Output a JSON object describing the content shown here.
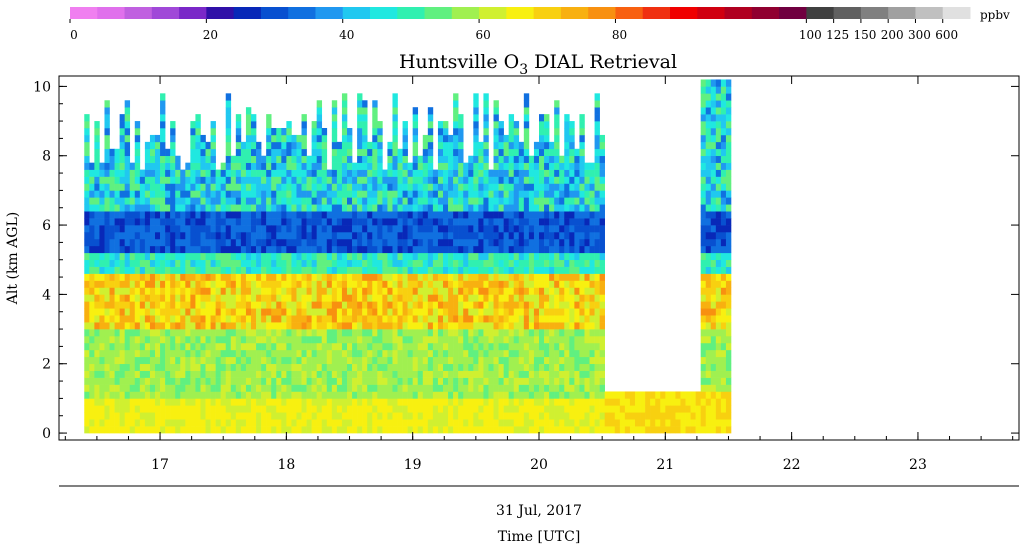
{
  "chart_data": {
    "type": "heatmap",
    "title_main": "Huntsville O",
    "title_sub": "3",
    "title_rest": " DIAL Retrieval",
    "ylabel": "Alt (km AGL)",
    "xlabel_date": "31 Jul, 2017",
    "xlabel": "Time [UTC]",
    "x_ticks": [
      "17",
      "18",
      "19",
      "20",
      "21",
      "22",
      "23"
    ],
    "y_ticks": [
      "0",
      "2",
      "4",
      "6",
      "8",
      "10"
    ],
    "xlim": [
      16.2,
      23.8
    ],
    "ylim": [
      -0.2,
      10.3
    ],
    "colorbar": {
      "unit": "ppbv",
      "tick_labels": [
        "0",
        "20",
        "40",
        "60",
        "80",
        "100",
        "125",
        "150",
        "200",
        "300",
        "600"
      ],
      "colors": [
        "#f07ff0",
        "#e070ec",
        "#c060e0",
        "#a048d8",
        "#7a28c8",
        "#3010a8",
        "#0828b8",
        "#0850d0",
        "#1070e0",
        "#2098f0",
        "#20c8f0",
        "#20e8e0",
        "#30f0b0",
        "#60f080",
        "#a0f050",
        "#d0f030",
        "#f8f010",
        "#f8d010",
        "#f8b010",
        "#f89010",
        "#f86010",
        "#f03010",
        "#f00000",
        "#d00010",
        "#b00020",
        "#900030",
        "#700040",
        "#404040",
        "#606060",
        "#808080",
        "#a0a0a0",
        "#c0c0c0",
        "#e0e0e0"
      ],
      "grid": "off"
    },
    "data_extent": {
      "start_hour": 16.4,
      "end_hour": 21.5,
      "gap_start": 20.8,
      "gap_end": 21.2
    },
    "layers": [
      {
        "alt_range": [
          0,
          1
        ],
        "o3_ppbv": 60
      },
      {
        "alt_range": [
          1,
          3
        ],
        "o3_ppbv": 55
      },
      {
        "alt_range": [
          3,
          5
        ],
        "o3_ppbv": 60
      },
      {
        "alt_range": [
          5,
          6.5
        ],
        "o3_ppbv": 25
      },
      {
        "alt_range": [
          6.5,
          10
        ],
        "o3_ppbv": 40
      }
    ]
  }
}
